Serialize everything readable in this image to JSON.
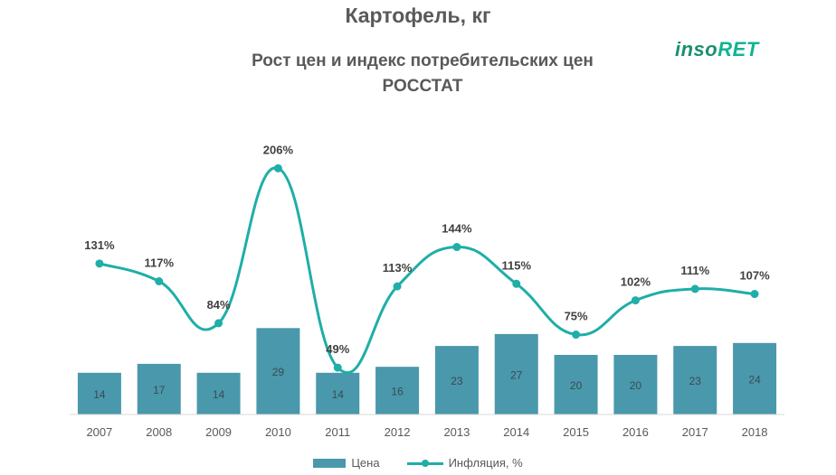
{
  "header": {
    "title": "Картофель, кг",
    "subtitle_line1": "Рост цен и индекс потребительских цен",
    "subtitle_line2": "РОССТАТ"
  },
  "logo": {
    "part1": "inso",
    "part2": "RET"
  },
  "colors": {
    "bar": "#4a98ab",
    "line": "#1faea8",
    "text": "#595959",
    "axis": "#d9d9d9"
  },
  "chart_data": {
    "type": "bar",
    "categories": [
      "2007",
      "2008",
      "2009",
      "2010",
      "2011",
      "2012",
      "2013",
      "2014",
      "2015",
      "2016",
      "2017",
      "2018"
    ],
    "series": [
      {
        "name": "Цена",
        "type": "bar",
        "values": [
          14,
          17,
          14,
          29,
          14,
          16,
          23,
          27,
          20,
          20,
          23,
          24
        ]
      },
      {
        "name": "Инфляция, %",
        "type": "line",
        "smooth": true,
        "values": [
          131,
          117,
          84,
          206,
          49,
          113,
          144,
          115,
          75,
          102,
          111,
          107
        ],
        "labels": [
          "131%",
          "117%",
          "84%",
          "206%",
          "49%",
          "113%",
          "144%",
          "115%",
          "75%",
          "102%",
          "111%",
          "107%"
        ]
      }
    ],
    "legend": {
      "position": "bottom",
      "items": [
        "Цена",
        "Инфляция, %"
      ]
    },
    "grid": false
  }
}
